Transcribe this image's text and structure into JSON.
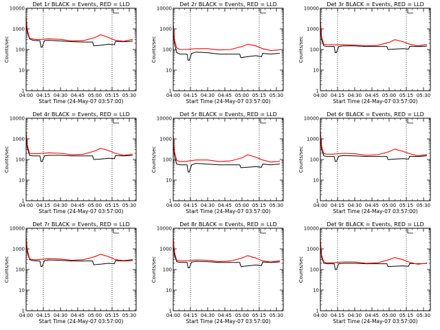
{
  "panel_title_suffix": "BLACK = Events, RED = LLD",
  "xlabel": "Start Time (24-May-07 03:57:00)",
  "ylabel": "Counts/sec",
  "x_ticks": [
    "04:00",
    "04:15",
    "04:30",
    "04:45",
    "05:00",
    "05:15",
    "05:30"
  ],
  "y_ticks": [
    "1",
    "10",
    "100",
    "1000",
    "10000"
  ],
  "colors": {
    "events": "#000000",
    "lld": "#ff0000"
  },
  "chart_data": [
    {
      "type": "line",
      "title": "Det 1r BLACK = Events, RED = LLD",
      "xlabel": "Start Time (24-May-07 03:57:00)",
      "ylabel": "Counts/sec",
      "yscale": "log",
      "ylim": [
        1,
        10000
      ],
      "xlim_minutes_after_start": [
        3,
        99
      ],
      "dotted_vlines": [
        "04:15",
        "05:15"
      ],
      "series": [
        {
          "name": "Events",
          "color": "#000000",
          "x": [
            "04:00",
            "04:01",
            "04:03",
            "04:06",
            "04:10",
            "04:12",
            "04:13",
            "04:14",
            "04:16",
            "04:20",
            "04:30",
            "04:40",
            "04:50",
            "04:58",
            "04:59",
            "05:05",
            "05:12",
            "05:17",
            "05:18",
            "05:25",
            "05:32",
            "05:33"
          ],
          "y": [
            2500,
            700,
            320,
            280,
            270,
            270,
            130,
            130,
            270,
            280,
            260,
            240,
            230,
            230,
            150,
            160,
            180,
            170,
            250,
            240,
            250,
            260
          ]
        },
        {
          "name": "LLD",
          "color": "#ff0000",
          "x": [
            "04:00",
            "04:01",
            "04:03",
            "04:06",
            "04:10",
            "04:20",
            "04:30",
            "04:40",
            "04:50",
            "05:00",
            "05:05",
            "05:12",
            "05:18",
            "05:25",
            "05:32",
            "05:33"
          ],
          "y": [
            4000,
            900,
            360,
            320,
            300,
            330,
            310,
            260,
            270,
            380,
            520,
            380,
            280,
            250,
            300,
            310
          ]
        }
      ]
    },
    {
      "type": "line",
      "title": "Det 2r BLACK = Events, RED = LLD",
      "xlabel": "Start Time (24-May-07 03:57:00)",
      "ylabel": "Counts/sec",
      "yscale": "log",
      "ylim": [
        1,
        10000
      ],
      "xlim_minutes_after_start": [
        3,
        99
      ],
      "dotted_vlines": [
        "04:15",
        "05:15"
      ],
      "series": [
        {
          "name": "Events",
          "color": "#000000",
          "x": [
            "04:00",
            "04:01",
            "04:03",
            "04:06",
            "04:10",
            "04:12",
            "04:13",
            "04:14",
            "04:16",
            "04:20",
            "04:30",
            "04:40",
            "04:50",
            "04:58",
            "04:59",
            "05:05",
            "05:12",
            "05:17",
            "05:18",
            "05:25",
            "05:32",
            "05:33"
          ],
          "y": [
            900,
            200,
            70,
            60,
            60,
            60,
            30,
            30,
            65,
            75,
            70,
            60,
            60,
            60,
            40,
            45,
            50,
            45,
            65,
            60,
            65,
            65
          ]
        },
        {
          "name": "LLD",
          "color": "#ff0000",
          "x": [
            "04:00",
            "04:01",
            "04:03",
            "04:06",
            "04:10",
            "04:20",
            "04:30",
            "04:40",
            "04:50",
            "05:00",
            "05:05",
            "05:12",
            "05:18",
            "05:25",
            "05:32",
            "05:33"
          ],
          "y": [
            2000,
            300,
            120,
            100,
            100,
            110,
            110,
            95,
            100,
            140,
            180,
            150,
            110,
            90,
            95,
            100
          ]
        }
      ]
    },
    {
      "type": "line",
      "title": "Det 3r BLACK = Events, RED = LLD",
      "xlabel": "Start Time (24-May-07 03:57:00)",
      "ylabel": "Counts/sec",
      "yscale": "log",
      "ylim": [
        1,
        10000
      ],
      "xlim_minutes_after_start": [
        3,
        99
      ],
      "dotted_vlines": [
        "04:15",
        "05:15"
      ],
      "series": [
        {
          "name": "Events",
          "color": "#000000",
          "x": [
            "04:00",
            "04:01",
            "04:03",
            "04:06",
            "04:10",
            "04:12",
            "04:13",
            "04:14",
            "04:16",
            "04:20",
            "04:30",
            "04:40",
            "04:50",
            "04:58",
            "04:59",
            "05:05",
            "05:12",
            "05:17",
            "05:18",
            "05:25",
            "05:32",
            "05:33"
          ],
          "y": [
            1500,
            300,
            150,
            140,
            140,
            140,
            70,
            70,
            140,
            150,
            150,
            140,
            140,
            140,
            100,
            105,
            110,
            105,
            145,
            140,
            145,
            150
          ]
        },
        {
          "name": "LLD",
          "color": "#ff0000",
          "x": [
            "04:00",
            "04:01",
            "04:03",
            "04:06",
            "04:10",
            "04:20",
            "04:30",
            "04:40",
            "04:50",
            "05:00",
            "05:05",
            "05:12",
            "05:18",
            "05:25",
            "05:32",
            "05:33"
          ],
          "y": [
            3000,
            400,
            180,
            170,
            170,
            170,
            165,
            150,
            160,
            220,
            300,
            240,
            180,
            150,
            170,
            175
          ]
        }
      ]
    },
    {
      "type": "line",
      "title": "Det 4r BLACK = Events, RED = LLD",
      "xlabel": "Start Time (24-May-07 03:57:00)",
      "ylabel": "Counts/sec",
      "yscale": "log",
      "ylim": [
        1,
        10000
      ],
      "xlim_minutes_after_start": [
        3,
        99
      ],
      "dotted_vlines": [
        "04:15",
        "05:15"
      ],
      "series": [
        {
          "name": "Events",
          "color": "#000000",
          "x": [
            "04:00",
            "04:01",
            "04:03",
            "04:06",
            "04:10",
            "04:12",
            "04:13",
            "04:14",
            "04:16",
            "04:20",
            "04:30",
            "04:40",
            "04:50",
            "04:58",
            "04:59",
            "05:05",
            "05:12",
            "05:17",
            "05:18",
            "05:25",
            "05:32",
            "05:33"
          ],
          "y": [
            1500,
            350,
            160,
            150,
            150,
            150,
            80,
            80,
            150,
            160,
            160,
            150,
            150,
            150,
            100,
            105,
            115,
            110,
            155,
            150,
            155,
            160
          ]
        },
        {
          "name": "LLD",
          "color": "#ff0000",
          "x": [
            "04:00",
            "04:01",
            "04:03",
            "04:06",
            "04:10",
            "04:20",
            "04:30",
            "04:40",
            "04:50",
            "05:00",
            "05:05",
            "05:12",
            "05:18",
            "05:25",
            "05:32",
            "05:33"
          ],
          "y": [
            2500,
            500,
            200,
            190,
            190,
            210,
            200,
            170,
            180,
            260,
            350,
            270,
            200,
            160,
            180,
            185
          ]
        }
      ]
    },
    {
      "type": "line",
      "title": "Det 5r BLACK = Events, RED = LLD",
      "xlabel": "Start Time (24-May-07 03:57:00)",
      "ylabel": "Counts/sec",
      "yscale": "log",
      "ylim": [
        1,
        10000
      ],
      "xlim_minutes_after_start": [
        3,
        99
      ],
      "dotted_vlines": [
        "04:15",
        "05:15"
      ],
      "series": [
        {
          "name": "Events",
          "color": "#000000",
          "x": [
            "04:00",
            "04:01",
            "04:03",
            "04:06",
            "04:10",
            "04:12",
            "04:13",
            "04:14",
            "04:16",
            "04:20",
            "04:30",
            "04:40",
            "04:50",
            "04:58",
            "04:59",
            "05:05",
            "05:12",
            "05:17",
            "05:18",
            "05:25",
            "05:32",
            "05:33"
          ],
          "y": [
            800,
            150,
            60,
            55,
            55,
            55,
            25,
            25,
            55,
            65,
            60,
            55,
            55,
            55,
            40,
            42,
            45,
            42,
            60,
            55,
            60,
            62
          ]
        },
        {
          "name": "LLD",
          "color": "#ff0000",
          "x": [
            "04:00",
            "04:01",
            "04:03",
            "04:06",
            "04:10",
            "04:20",
            "04:30",
            "04:40",
            "04:50",
            "05:00",
            "05:05",
            "05:12",
            "05:18",
            "05:25",
            "05:32",
            "05:33"
          ],
          "y": [
            1500,
            250,
            90,
            80,
            80,
            95,
            95,
            80,
            85,
            120,
            170,
            130,
            95,
            75,
            80,
            85
          ]
        }
      ]
    },
    {
      "type": "line",
      "title": "Det 6r BLACK = Events, RED = LLD",
      "xlabel": "Start Time (24-May-07 03:57:00)",
      "ylabel": "Counts/sec",
      "yscale": "log",
      "ylim": [
        1,
        10000
      ],
      "xlim_minutes_after_start": [
        3,
        99
      ],
      "dotted_vlines": [
        "04:15",
        "05:15"
      ],
      "series": [
        {
          "name": "Events",
          "color": "#000000",
          "x": [
            "04:00",
            "04:01",
            "04:03",
            "04:06",
            "04:10",
            "04:12",
            "04:13",
            "04:14",
            "04:16",
            "04:20",
            "04:30",
            "04:40",
            "04:50",
            "04:58",
            "04:59",
            "05:05",
            "05:12",
            "05:17",
            "05:18",
            "05:25",
            "05:32",
            "05:33"
          ],
          "y": [
            1500,
            300,
            150,
            140,
            140,
            140,
            80,
            80,
            145,
            155,
            150,
            140,
            140,
            140,
            100,
            105,
            110,
            105,
            145,
            140,
            150,
            155
          ]
        },
        {
          "name": "LLD",
          "color": "#ff0000",
          "x": [
            "04:00",
            "04:01",
            "04:03",
            "04:06",
            "04:10",
            "04:20",
            "04:30",
            "04:40",
            "04:50",
            "05:00",
            "05:05",
            "05:12",
            "05:18",
            "05:25",
            "05:32",
            "05:33"
          ],
          "y": [
            2500,
            450,
            190,
            180,
            180,
            200,
            190,
            160,
            170,
            240,
            320,
            250,
            190,
            150,
            170,
            180
          ]
        }
      ]
    },
    {
      "type": "line",
      "title": "Det 7r BLACK = Events, RED = LLD",
      "xlabel": "Start Time (24-May-07 03:57:00)",
      "ylabel": "Counts/sec",
      "yscale": "log",
      "ylim": [
        1,
        10000
      ],
      "xlim_minutes_after_start": [
        3,
        99
      ],
      "dotted_vlines": [
        "04:15",
        "05:15"
      ],
      "series": [
        {
          "name": "Events",
          "color": "#000000",
          "x": [
            "04:00",
            "04:01",
            "04:03",
            "04:06",
            "04:10",
            "04:12",
            "04:13",
            "04:14",
            "04:16",
            "04:20",
            "04:30",
            "04:40",
            "04:50",
            "04:58",
            "04:59",
            "05:05",
            "05:12",
            "05:17",
            "05:18",
            "05:25",
            "05:32",
            "05:33"
          ],
          "y": [
            2500,
            700,
            300,
            270,
            260,
            260,
            140,
            140,
            270,
            290,
            280,
            260,
            260,
            260,
            170,
            180,
            200,
            190,
            270,
            260,
            270,
            280
          ]
        },
        {
          "name": "LLD",
          "color": "#ff0000",
          "x": [
            "04:00",
            "04:01",
            "04:03",
            "04:06",
            "04:10",
            "04:20",
            "04:30",
            "04:40",
            "04:50",
            "05:00",
            "05:05",
            "05:12",
            "05:18",
            "05:25",
            "05:32",
            "05:33"
          ],
          "y": [
            4000,
            900,
            330,
            300,
            300,
            340,
            320,
            280,
            300,
            420,
            550,
            420,
            300,
            270,
            300,
            310
          ]
        }
      ]
    },
    {
      "type": "line",
      "title": "Det 8r BLACK = Events, RED = LLD",
      "xlabel": "Start Time (24-May-07 03:57:00)",
      "ylabel": "Counts/sec",
      "yscale": "log",
      "ylim": [
        1,
        10000
      ],
      "xlim_minutes_after_start": [
        3,
        99
      ],
      "dotted_vlines": [
        "04:15",
        "05:15"
      ],
      "series": [
        {
          "name": "Events",
          "color": "#000000",
          "x": [
            "04:00",
            "04:01",
            "04:03",
            "04:06",
            "04:10",
            "04:12",
            "04:13",
            "04:14",
            "04:16",
            "04:20",
            "04:30",
            "04:40",
            "04:50",
            "04:58",
            "04:59",
            "05:05",
            "05:12",
            "05:17",
            "05:18",
            "05:25",
            "05:32",
            "05:33"
          ],
          "y": [
            2200,
            500,
            240,
            220,
            220,
            220,
            120,
            120,
            230,
            250,
            240,
            220,
            220,
            220,
            140,
            150,
            165,
            155,
            230,
            220,
            230,
            240
          ]
        },
        {
          "name": "LLD",
          "color": "#ff0000",
          "x": [
            "04:00",
            "04:01",
            "04:03",
            "04:06",
            "04:10",
            "04:20",
            "04:30",
            "04:40",
            "04:50",
            "05:00",
            "05:05",
            "05:12",
            "05:18",
            "05:25",
            "05:32",
            "05:33"
          ],
          "y": [
            3500,
            700,
            280,
            260,
            260,
            290,
            280,
            240,
            260,
            360,
            470,
            360,
            260,
            230,
            260,
            270
          ]
        }
      ]
    },
    {
      "type": "line",
      "title": "Det 9r BLACK = Events, RED = LLD",
      "xlabel": "Start Time (24-May-07 03:57:00)",
      "ylabel": "Counts/sec",
      "yscale": "log",
      "ylim": [
        1,
        10000
      ],
      "xlim_minutes_after_start": [
        3,
        99
      ],
      "dotted_vlines": [
        "04:15",
        "05:15"
      ],
      "series": [
        {
          "name": "Events",
          "color": "#000000",
          "x": [
            "04:00",
            "04:01",
            "04:03",
            "04:06",
            "04:10",
            "04:12",
            "04:13",
            "04:14",
            "04:16",
            "04:20",
            "04:30",
            "04:40",
            "04:50",
            "04:58",
            "04:59",
            "05:05",
            "05:12",
            "05:17",
            "05:18",
            "05:25",
            "05:32",
            "05:33"
          ],
          "y": [
            1800,
            400,
            200,
            190,
            190,
            190,
            100,
            100,
            190,
            200,
            200,
            190,
            190,
            190,
            140,
            145,
            150,
            145,
            195,
            190,
            195,
            200
          ]
        },
        {
          "name": "LLD",
          "color": "#ff0000",
          "x": [
            "04:00",
            "04:01",
            "04:03",
            "04:06",
            "04:10",
            "04:20",
            "04:30",
            "04:40",
            "04:50",
            "05:00",
            "05:05",
            "05:12",
            "05:18",
            "05:25",
            "05:32",
            "05:33"
          ],
          "y": [
            3000,
            500,
            230,
            210,
            210,
            230,
            230,
            200,
            210,
            300,
            380,
            300,
            220,
            180,
            200,
            210
          ]
        }
      ]
    }
  ]
}
